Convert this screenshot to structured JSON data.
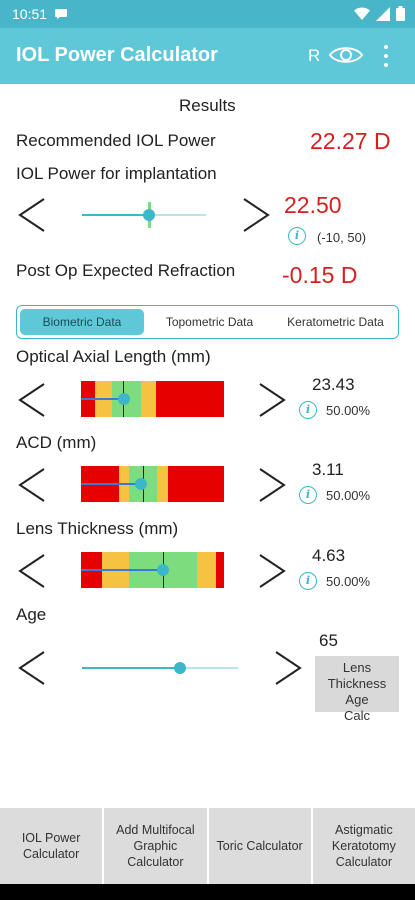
{
  "status_bar": {
    "time": "10:51"
  },
  "app_bar": {
    "title": "IOL Power Calculator",
    "r_label": "R"
  },
  "results": {
    "heading": "Results",
    "recommended_label": "Recommended IOL Power",
    "recommended_value": "22.27 D",
    "implant_label": "IOL Power for implantation",
    "implant_value": "22.50",
    "implant_range": "(-10, 50)",
    "implant_slider_fraction": 0.54,
    "postop_label": "Post Op Expected Refraction",
    "postop_value": "-0.15 D"
  },
  "tabs": [
    {
      "label": "Biometric Data",
      "active": true
    },
    {
      "label": "Topometric Data",
      "active": false
    },
    {
      "label": "Keratometric Data",
      "active": false
    }
  ],
  "colors": {
    "red": "#e60000",
    "yellow": "#f5c242",
    "green": "#7ddc7d",
    "accent": "#3cb7c9"
  },
  "measurements": [
    {
      "label": "Optical Axial Length (mm)",
      "value": "23.43",
      "percentile": "50.00%",
      "value_fraction": 0.3
    },
    {
      "label": "ACD (mm)",
      "value": "3.11",
      "percentile": "50.00%",
      "value_fraction": 0.42
    },
    {
      "label": "Lens Thickness (mm)",
      "value": "4.63",
      "percentile": "50.00%",
      "value_fraction": 0.57
    }
  ],
  "age": {
    "label": "Age",
    "value": "65",
    "slider_fraction": 0.63,
    "calc_button": "Lens Thickness Age Calc"
  },
  "bottom_nav": [
    "IOL Power Calculator",
    "Add Multifocal Graphic Calculator",
    "Toric Calculator",
    "Astigmatic Keratotomy Calculator"
  ]
}
